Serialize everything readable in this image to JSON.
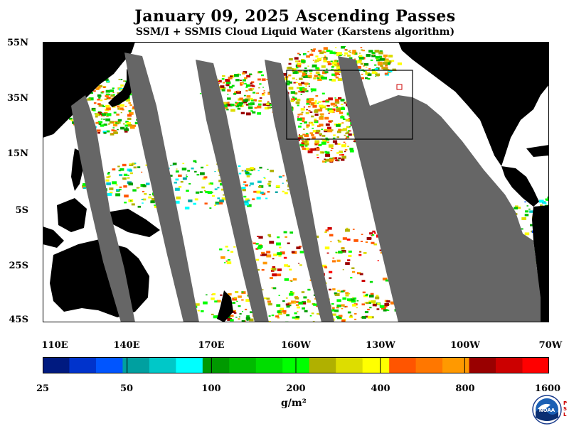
{
  "title": "January 09, 2025  Ascending Passes",
  "subtitle": "SSM/I + SSMIS Cloud Liquid Water (Karstens algorithm)",
  "lat_labels": [
    "55N",
    "35N",
    "15N",
    "5S",
    "25S",
    "45S"
  ],
  "lon_labels": [
    "110E",
    "140E",
    "170E",
    "160W",
    "130W",
    "100W",
    "70W"
  ],
  "colorbar": {
    "tick_labels": [
      "25",
      "50",
      "100",
      "200",
      "400",
      "800",
      "1600"
    ],
    "units": "g/m²",
    "colors": [
      "#001a80",
      "#0033cc",
      "#0055ff",
      "#00a0a0",
      "#00c8c8",
      "#00ffff",
      "#009900",
      "#00bb00",
      "#00dd00",
      "#00ff00",
      "#b0b000",
      "#dddd00",
      "#ffff00",
      "#ff5500",
      "#ff7700",
      "#ff9900",
      "#990000",
      "#cc0000",
      "#ff0000"
    ]
  },
  "logo": {
    "name": "noaa-logo",
    "text": "NOAA",
    "psl_text": "PSL"
  },
  "map": {
    "ocean_color": "#ffffff",
    "land_color": "#000000",
    "no_data_color": "#666666",
    "lat_range": [
      "45S",
      "55N"
    ],
    "lon_range": [
      "110E",
      "70W"
    ],
    "highlight_box": "black rectangle northeast Pacific"
  }
}
